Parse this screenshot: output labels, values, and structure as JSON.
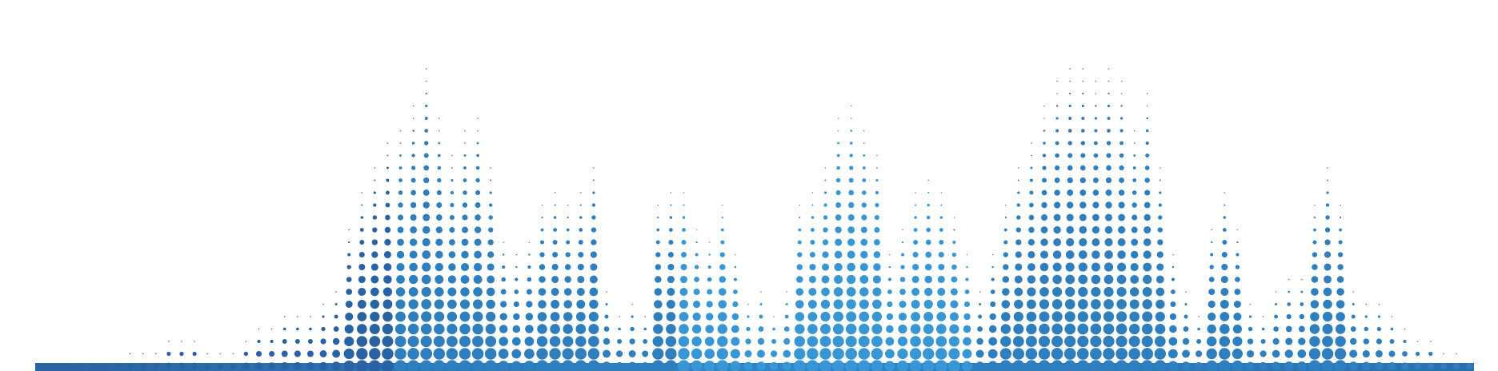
{
  "artwork": {
    "subject": "halftone-audio-equalizer-waveform",
    "colors": {
      "background": "#ffffff",
      "dot_dark": "#2a63a3",
      "dot_mid": "#2f7fbf",
      "dot_light": "#3796d3"
    },
    "columns": [
      {
        "level": 0.02
      },
      {
        "level": 0.03
      },
      {
        "level": 0.03
      },
      {
        "level": 0.04
      },
      {
        "level": 0.05
      },
      {
        "level": 0.06
      },
      {
        "level": 0.07
      },
      {
        "level": 0.08
      },
      {
        "level": 0.09
      },
      {
        "level": 0.1
      },
      {
        "level": 0.12
      },
      {
        "level": 0.13
      },
      {
        "level": 0.12
      },
      {
        "level": 0.1
      },
      {
        "level": 0.08
      },
      {
        "level": 0.1
      },
      {
        "level": 0.15
      },
      {
        "level": 0.18
      },
      {
        "level": 0.17
      },
      {
        "level": 0.2
      },
      {
        "level": 0.22
      },
      {
        "level": 0.21
      },
      {
        "level": 0.24
      },
      {
        "level": 0.3
      },
      {
        "level": 0.48
      },
      {
        "level": 0.6
      },
      {
        "level": 0.7
      },
      {
        "level": 0.78
      },
      {
        "level": 0.82
      },
      {
        "level": 0.88
      },
      {
        "level": 1.0
      },
      {
        "level": 0.84
      },
      {
        "level": 0.72
      },
      {
        "level": 0.8
      },
      {
        "level": 0.86
      },
      {
        "level": 0.7
      },
      {
        "level": 0.45
      },
      {
        "level": 0.4
      },
      {
        "level": 0.46
      },
      {
        "level": 0.58
      },
      {
        "level": 0.62
      },
      {
        "level": 0.55
      },
      {
        "level": 0.6
      },
      {
        "level": 0.68
      },
      {
        "level": 0.3
      },
      {
        "level": 0.22
      },
      {
        "level": 0.25
      },
      {
        "level": 0.2
      },
      {
        "level": 0.58
      },
      {
        "level": 0.62
      },
      {
        "level": 0.6
      },
      {
        "level": 0.5
      },
      {
        "level": 0.46
      },
      {
        "level": 0.56
      },
      {
        "level": 0.42
      },
      {
        "level": 0.25
      },
      {
        "level": 0.3
      },
      {
        "level": 0.22
      },
      {
        "level": 0.28
      },
      {
        "level": 0.56
      },
      {
        "level": 0.62
      },
      {
        "level": 0.7
      },
      {
        "level": 0.85
      },
      {
        "level": 0.9
      },
      {
        "level": 0.82
      },
      {
        "level": 0.72
      },
      {
        "level": 0.4
      },
      {
        "level": 0.48
      },
      {
        "level": 0.62
      },
      {
        "level": 0.66
      },
      {
        "level": 0.6
      },
      {
        "level": 0.54
      },
      {
        "level": 0.4
      },
      {
        "level": 0.3
      },
      {
        "level": 0.4
      },
      {
        "level": 0.55
      },
      {
        "level": 0.68
      },
      {
        "level": 0.78
      },
      {
        "level": 0.88
      },
      {
        "level": 0.98
      },
      {
        "level": 1.0
      },
      {
        "level": 1.0
      },
      {
        "level": 0.95
      },
      {
        "level": 1.0
      },
      {
        "level": 0.96
      },
      {
        "level": 0.82
      },
      {
        "level": 0.92
      },
      {
        "level": 0.68
      },
      {
        "level": 0.4
      },
      {
        "level": 0.3
      },
      {
        "level": 0.22
      },
      {
        "level": 0.5
      },
      {
        "level": 0.62
      },
      {
        "level": 0.48
      },
      {
        "level": 0.26
      },
      {
        "level": 0.22
      },
      {
        "level": 0.28
      },
      {
        "level": 0.32
      },
      {
        "level": 0.34
      },
      {
        "level": 0.55
      },
      {
        "level": 0.68
      },
      {
        "level": 0.56
      },
      {
        "level": 0.3
      },
      {
        "level": 0.26
      },
      {
        "level": 0.24
      },
      {
        "level": 0.2
      },
      {
        "level": 0.16
      },
      {
        "level": 0.14
      },
      {
        "level": 0.12
      },
      {
        "level": 0.1
      },
      {
        "level": 0.08
      },
      {
        "level": 0.06
      }
    ]
  }
}
